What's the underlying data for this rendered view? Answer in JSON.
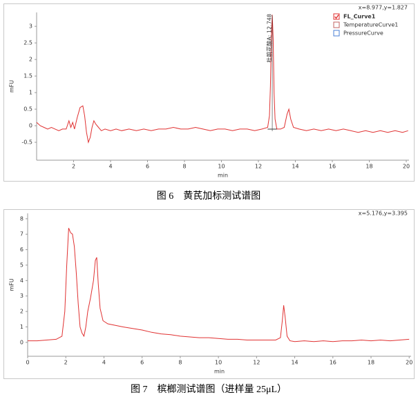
{
  "chart_data": [
    {
      "type": "line",
      "title": "图 6　黄芪加标测试谱图",
      "readout": "x=8.977,y=1.827",
      "xlabel": "min",
      "ylabel": "mFU",
      "grid": false,
      "annotation": "杜鹃花酸A: 12.748",
      "extra_legend": [
        {
          "name": "TemperatureCurve1",
          "color": "#c06060"
        },
        {
          "name": "PressureCurve",
          "color": "#4a7fd4"
        }
      ],
      "x": [
        0,
        0.2,
        0.4,
        0.6,
        0.8,
        1.0,
        1.2,
        1.4,
        1.6,
        1.75,
        1.85,
        1.95,
        2.05,
        2.2,
        2.35,
        2.5,
        2.6,
        2.7,
        2.8,
        2.9,
        3.0,
        3.1,
        3.2,
        3.35,
        3.5,
        3.7,
        4.0,
        4.3,
        4.6,
        5.0,
        5.4,
        5.8,
        6.2,
        6.6,
        7.0,
        7.4,
        7.8,
        8.2,
        8.6,
        9.0,
        9.4,
        9.8,
        10.2,
        10.6,
        11.0,
        11.4,
        11.8,
        12.2,
        12.5,
        12.6,
        12.65,
        12.7,
        12.75,
        12.8,
        12.85,
        12.9,
        13.0,
        13.2,
        13.4,
        13.55,
        13.65,
        13.75,
        13.9,
        14.2,
        14.6,
        15.0,
        15.4,
        15.8,
        16.2,
        16.6,
        17.0,
        17.4,
        17.8,
        18.2,
        18.6,
        19.0,
        19.4,
        19.8,
        20.1
      ],
      "series": [
        {
          "name": "FL_Curve1",
          "color": "#e03030",
          "values": [
            0.1,
            0.0,
            -0.05,
            -0.1,
            -0.05,
            -0.1,
            -0.15,
            -0.1,
            -0.1,
            0.15,
            -0.05,
            0.1,
            -0.1,
            0.25,
            0.55,
            0.6,
            0.3,
            -0.2,
            -0.5,
            -0.35,
            -0.05,
            0.15,
            0.05,
            -0.05,
            -0.15,
            -0.1,
            -0.15,
            -0.1,
            -0.15,
            -0.1,
            -0.15,
            -0.1,
            -0.15,
            -0.1,
            -0.1,
            -0.05,
            -0.1,
            -0.1,
            -0.05,
            -0.1,
            -0.15,
            -0.1,
            -0.1,
            -0.15,
            -0.1,
            -0.1,
            -0.15,
            -0.1,
            -0.05,
            0.3,
            1.2,
            2.6,
            3.35,
            2.6,
            1.0,
            0.2,
            -0.1,
            -0.1,
            -0.05,
            0.35,
            0.5,
            0.2,
            -0.05,
            -0.1,
            -0.15,
            -0.1,
            -0.15,
            -0.1,
            -0.15,
            -0.1,
            -0.15,
            -0.2,
            -0.15,
            -0.2,
            -0.15,
            -0.2,
            -0.15,
            -0.2,
            -0.15
          ]
        }
      ],
      "xlim": [
        0,
        20.15
      ],
      "ylim": [
        -1.04,
        3.42
      ],
      "xticks": [
        2,
        4,
        6,
        8,
        10,
        12,
        14,
        16,
        18,
        20
      ],
      "yticks": [
        -0.5,
        0,
        0.5,
        1,
        1.5,
        2,
        2.5,
        3
      ]
    },
    {
      "type": "line",
      "title": "图 7　槟榔测试谱图（进样量 25μL）",
      "readout": "x=5.176,y=3.395",
      "xlabel": "min",
      "ylabel": "mFU",
      "grid": false,
      "x": [
        0,
        0.5,
        1.0,
        1.5,
        1.8,
        1.95,
        2.05,
        2.15,
        2.25,
        2.35,
        2.45,
        2.55,
        2.65,
        2.75,
        2.85,
        2.95,
        3.05,
        3.15,
        3.3,
        3.45,
        3.55,
        3.62,
        3.7,
        3.8,
        3.95,
        4.2,
        4.6,
        5.0,
        5.5,
        6.0,
        6.5,
        7.0,
        7.5,
        8.0,
        8.5,
        9.0,
        9.5,
        10.0,
        10.5,
        11.0,
        11.5,
        12.0,
        12.5,
        13.0,
        13.25,
        13.35,
        13.42,
        13.5,
        13.6,
        13.75,
        14.0,
        14.5,
        15.0,
        15.5,
        16.0,
        16.5,
        17.0,
        17.5,
        18.0,
        18.5,
        19.0,
        19.5,
        20.0
      ],
      "series": [
        {
          "name": "FL_Curve1",
          "color": "#e03030",
          "values": [
            0.1,
            0.1,
            0.15,
            0.2,
            0.4,
            2.0,
            5.0,
            7.4,
            7.1,
            7.0,
            6.2,
            4.5,
            2.5,
            1.0,
            0.6,
            0.4,
            1.0,
            2.0,
            2.9,
            4.0,
            5.3,
            5.5,
            3.8,
            2.2,
            1.4,
            1.2,
            1.1,
            1.0,
            0.9,
            0.8,
            0.65,
            0.55,
            0.5,
            0.4,
            0.35,
            0.3,
            0.3,
            0.25,
            0.2,
            0.2,
            0.15,
            0.15,
            0.15,
            0.15,
            0.3,
            1.4,
            2.4,
            1.6,
            0.4,
            0.1,
            0.05,
            0.1,
            0.05,
            0.1,
            0.05,
            0.1,
            0.1,
            0.15,
            0.1,
            0.15,
            0.1,
            0.15,
            0.2
          ]
        }
      ],
      "xlim": [
        0,
        20.1
      ],
      "ylim": [
        -0.9,
        8.35
      ],
      "xticks": [
        0,
        2,
        4,
        6,
        8,
        10,
        12,
        14,
        16,
        18,
        20
      ],
      "yticks": [
        0,
        1,
        2,
        3,
        4,
        5,
        6,
        7,
        8
      ]
    }
  ]
}
